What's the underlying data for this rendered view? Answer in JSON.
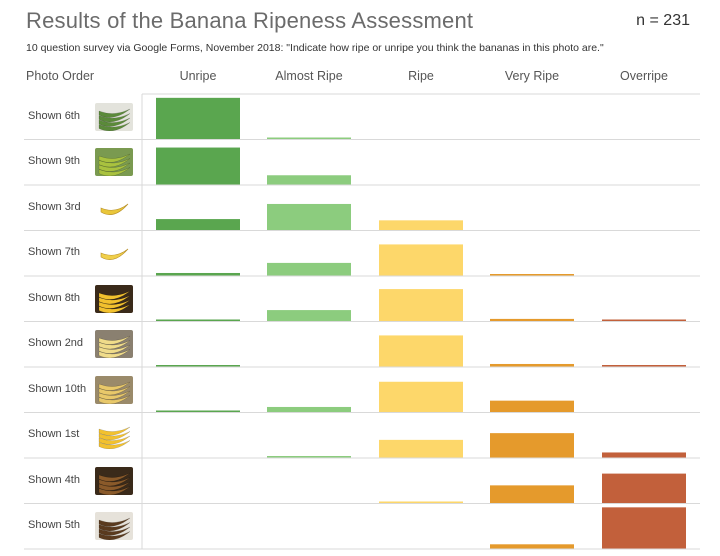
{
  "title": "Results of the Banana Ripeness Assessment",
  "n_label": "n = 231",
  "subtitle": "10 question survey via Google Forms, November 2018: \"Indicate how ripe or unripe you think the bananas in this photo are.\"",
  "row_header": "Photo Order",
  "colors": {
    "Unripe": "#5aa64f",
    "Almost Ripe": "#8ccc7e",
    "Ripe": "#fdd76a",
    "Very Ripe": "#e59a2c",
    "Overripe": "#c2603b"
  },
  "chart_data": {
    "type": "bar",
    "title": "Results of the Banana Ripeness Assessment",
    "categories": [
      "Unripe",
      "Almost Ripe",
      "Ripe",
      "Very Ripe",
      "Overripe"
    ],
    "rows": [
      "Shown 6th",
      "Shown 9th",
      "Shown 3rd",
      "Shown 7th",
      "Shown 8th",
      "Shown 2nd",
      "Shown 10th",
      "Shown 1st",
      "Shown 4th",
      "Shown 5th"
    ],
    "values": [
      [
        0.98,
        0.02,
        0.0,
        0.0,
        0.0
      ],
      [
        0.88,
        0.22,
        0.0,
        0.0,
        0.0
      ],
      [
        0.26,
        0.62,
        0.23,
        0.0,
        0.0
      ],
      [
        0.06,
        0.3,
        0.74,
        0.02,
        0.0
      ],
      [
        0.03,
        0.26,
        0.76,
        0.05,
        0.01
      ],
      [
        0.03,
        0.0,
        0.74,
        0.06,
        0.03
      ],
      [
        0.02,
        0.12,
        0.72,
        0.27,
        0.0
      ],
      [
        0.0,
        0.03,
        0.42,
        0.58,
        0.12
      ],
      [
        0.0,
        0.0,
        0.03,
        0.42,
        0.7
      ],
      [
        0.0,
        0.0,
        0.0,
        0.1,
        0.98
      ]
    ],
    "ylim": [
      0,
      1
    ]
  },
  "thumbs": [
    {
      "bg": "#e3e3dc",
      "fruit": "#5b8a3a",
      "shape": "bunch-green"
    },
    {
      "bg": "#7a9a50",
      "fruit": "#a9c23f",
      "shape": "bunch-green"
    },
    {
      "bg": "#ffffff",
      "fruit": "#e9c63a",
      "shape": "single"
    },
    {
      "bg": "#ffffff",
      "fruit": "#f0cf4a",
      "shape": "single"
    },
    {
      "bg": "#3a2a1a",
      "fruit": "#f2c12e",
      "shape": "bunch"
    },
    {
      "bg": "#8a8070",
      "fruit": "#f0dc8a",
      "shape": "bunch"
    },
    {
      "bg": "#9a8a6a",
      "fruit": "#e8c86a",
      "shape": "bunch"
    },
    {
      "bg": "#ffffff",
      "fruit": "#f2c12e",
      "shape": "bunch"
    },
    {
      "bg": "#3a2a1a",
      "fruit": "#8a5a2a",
      "shape": "bunch-brown"
    },
    {
      "bg": "#e6e2da",
      "fruit": "#5a3a1e",
      "shape": "bunch-brown"
    }
  ]
}
